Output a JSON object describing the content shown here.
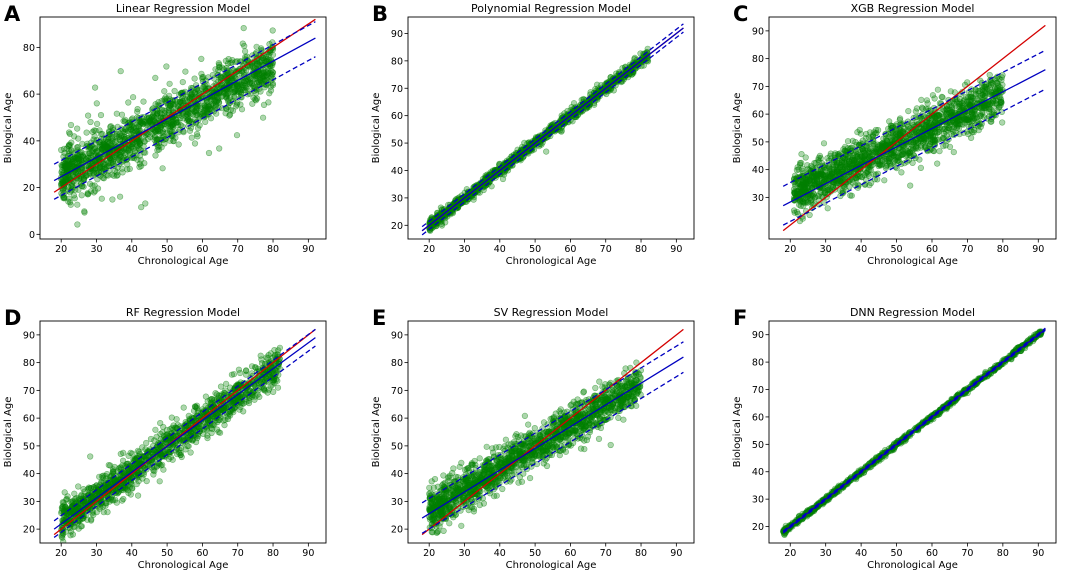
{
  "chart_data": [
    {
      "type": "scatter",
      "letter": "A",
      "title": "Linear Regression Model",
      "xlabel": "Chronological Age",
      "ylabel": "Biological Age",
      "xlim": [
        14,
        95
      ],
      "ylim": [
        -2,
        93
      ],
      "xticks": [
        20,
        30,
        40,
        50,
        60,
        70,
        80,
        90
      ],
      "yticks": [
        0,
        20,
        40,
        60,
        80
      ],
      "point_color": "#008000",
      "scatter": {
        "seed": 11,
        "n": 1400,
        "x_range": [
          20,
          80
        ],
        "slope": 0.8,
        "intercept": 9,
        "spread": 5.5,
        "outliers": 110,
        "outlier_spread": 14
      },
      "identity_line": {
        "x": [
          18,
          92
        ],
        "y": [
          18,
          92
        ],
        "color": "#d40000"
      },
      "fit_line": {
        "x": [
          18,
          92
        ],
        "y": [
          23,
          84
        ],
        "color": "#0000c0"
      },
      "bound_lines": [
        {
          "x": [
            18,
            92
          ],
          "y": [
            30,
            91
          ]
        },
        {
          "x": [
            18,
            92
          ],
          "y": [
            15,
            76
          ]
        }
      ]
    },
    {
      "type": "scatter",
      "letter": "B",
      "title": "Polynomial Regression Model",
      "xlabel": "Chronological Age",
      "ylabel": "Biological Age",
      "xlim": [
        14,
        95
      ],
      "ylim": [
        15,
        96
      ],
      "xticks": [
        20,
        30,
        40,
        50,
        60,
        70,
        80,
        90
      ],
      "yticks": [
        20,
        30,
        40,
        50,
        60,
        70,
        80,
        90
      ],
      "point_color": "#008000",
      "scatter": {
        "seed": 23,
        "n": 1100,
        "x_range": [
          20,
          82
        ],
        "slope": 1.0,
        "intercept": 0,
        "spread": 1.1,
        "outliers": 12,
        "outlier_spread": 3.5
      },
      "identity_line": {
        "x": [
          18,
          92
        ],
        "y": [
          18,
          92
        ],
        "color": "#d40000"
      },
      "fit_line": {
        "x": [
          18,
          92
        ],
        "y": [
          18,
          92
        ],
        "color": "#0000c0"
      },
      "bound_lines": [
        {
          "x": [
            18,
            92
          ],
          "y": [
            19.5,
            93.5
          ]
        },
        {
          "x": [
            18,
            92
          ],
          "y": [
            16.5,
            90.5
          ]
        }
      ]
    },
    {
      "type": "scatter",
      "letter": "C",
      "title": "XGB Regression Model",
      "xlabel": "Chronological Age",
      "ylabel": "Biological Age",
      "xlim": [
        14,
        95
      ],
      "ylim": [
        15,
        95
      ],
      "xticks": [
        20,
        30,
        40,
        50,
        60,
        70,
        80,
        90
      ],
      "yticks": [
        30,
        40,
        50,
        60,
        70,
        80,
        90
      ],
      "point_color": "#008000",
      "scatter": {
        "seed": 37,
        "n": 1500,
        "x_range": [
          21,
          80
        ],
        "slope": 0.6,
        "intercept": 19,
        "spread": 4.2,
        "outliers": 40,
        "outlier_spread": 8
      },
      "identity_line": {
        "x": [
          18,
          92
        ],
        "y": [
          18,
          92
        ],
        "color": "#d40000"
      },
      "fit_line": {
        "x": [
          18,
          92
        ],
        "y": [
          27,
          76
        ],
        "color": "#0000c0"
      },
      "bound_lines": [
        {
          "x": [
            18,
            92
          ],
          "y": [
            34,
            83
          ]
        },
        {
          "x": [
            18,
            92
          ],
          "y": [
            20,
            69
          ]
        }
      ]
    },
    {
      "type": "scatter",
      "letter": "D",
      "title": "RF Regression Model",
      "xlabel": "Chronological Age",
      "ylabel": "Biological Age",
      "xlim": [
        14,
        95
      ],
      "ylim": [
        15,
        95
      ],
      "xticks": [
        20,
        30,
        40,
        50,
        60,
        70,
        80,
        90
      ],
      "yticks": [
        20,
        30,
        40,
        50,
        60,
        70,
        80,
        90
      ],
      "point_color": "#008000",
      "scatter": {
        "seed": 53,
        "n": 1300,
        "x_range": [
          20,
          82
        ],
        "slope": 0.92,
        "intercept": 4,
        "spread": 3.2,
        "outliers": 40,
        "outlier_spread": 7
      },
      "identity_line": {
        "x": [
          18,
          92
        ],
        "y": [
          18,
          92
        ],
        "color": "#d40000"
      },
      "fit_line": {
        "x": [
          18,
          92
        ],
        "y": [
          20,
          89
        ],
        "color": "#0000c0"
      },
      "bound_lines": [
        {
          "x": [
            18,
            92
          ],
          "y": [
            23,
            92
          ]
        },
        {
          "x": [
            18,
            92
          ],
          "y": [
            17,
            86
          ]
        }
      ]
    },
    {
      "type": "scatter",
      "letter": "E",
      "title": "SV Regression Model",
      "xlabel": "Chronological Age",
      "ylabel": "Biological Age",
      "xlim": [
        14,
        95
      ],
      "ylim": [
        15,
        95
      ],
      "xticks": [
        20,
        30,
        40,
        50,
        60,
        70,
        80,
        90
      ],
      "yticks": [
        20,
        30,
        40,
        50,
        60,
        70,
        80,
        90
      ],
      "point_color": "#008000",
      "scatter": {
        "seed": 71,
        "n": 1500,
        "x_range": [
          20,
          80
        ],
        "slope": 0.77,
        "intercept": 11,
        "spread": 3.6,
        "outliers": 30,
        "outlier_spread": 7
      },
      "identity_line": {
        "x": [
          18,
          92
        ],
        "y": [
          18,
          92
        ],
        "color": "#d40000"
      },
      "fit_line": {
        "x": [
          18,
          92
        ],
        "y": [
          24,
          82
        ],
        "color": "#0000c0"
      },
      "bound_lines": [
        {
          "x": [
            18,
            92
          ],
          "y": [
            29.5,
            87.5
          ]
        },
        {
          "x": [
            18,
            92
          ],
          "y": [
            18.5,
            76.5
          ]
        }
      ]
    },
    {
      "type": "scatter",
      "letter": "F",
      "title": "DNN Regression Model",
      "xlabel": "Chronological Age",
      "ylabel": "Biological Age",
      "xlim": [
        14,
        95
      ],
      "ylim": [
        14,
        95
      ],
      "xticks": [
        20,
        30,
        40,
        50,
        60,
        70,
        80,
        90
      ],
      "yticks": [
        20,
        30,
        40,
        50,
        60,
        70,
        80,
        90
      ],
      "point_color": "#008000",
      "scatter": {
        "seed": 97,
        "n": 900,
        "x_range": [
          18,
          91
        ],
        "slope": 1.0,
        "intercept": 0,
        "spread": 0.5,
        "outliers": 0,
        "outlier_spread": 0
      },
      "identity_line": {
        "x": [
          18,
          92
        ],
        "y": [
          18,
          92
        ],
        "color": "#d40000"
      },
      "fit_line": {
        "x": [
          18,
          92
        ],
        "y": [
          18,
          92
        ],
        "color": "#0000c0"
      },
      "bound_lines": [
        {
          "x": [
            18,
            92
          ],
          "y": [
            18.4,
            92.4
          ]
        },
        {
          "x": [
            18,
            92
          ],
          "y": [
            17.6,
            91.6
          ]
        }
      ]
    }
  ]
}
